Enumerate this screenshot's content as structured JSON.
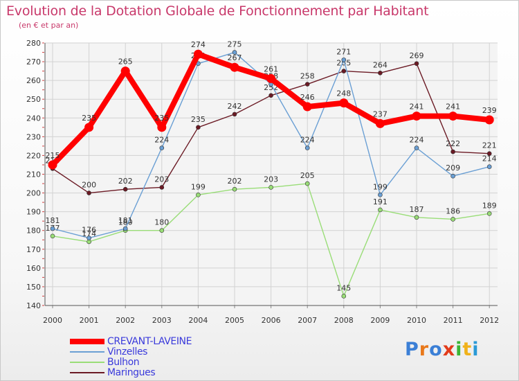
{
  "chart_data": {
    "type": "line",
    "title": "Evolution de la Dotation Globale de Fonctionnement par Habitant",
    "subtitle": "(en € et par an)",
    "categories": [
      "2000",
      "2001",
      "2002",
      "2003",
      "2004",
      "2005",
      "2006",
      "2007",
      "2008",
      "2009",
      "2010",
      "2011",
      "2012"
    ],
    "ylim": [
      140,
      280
    ],
    "yticks": [
      140,
      150,
      160,
      170,
      180,
      190,
      200,
      210,
      220,
      230,
      240,
      250,
      260,
      270,
      280
    ],
    "series": [
      {
        "name": "Maringues",
        "color": "#6b1a24",
        "values": [
          213,
          200,
          202,
          203,
          235,
          242,
          252,
          258,
          265,
          264,
          269,
          222,
          221
        ]
      },
      {
        "name": "Bulhon",
        "color": "#99dd77",
        "values": [
          177,
          174,
          180,
          180,
          199,
          202,
          203,
          205,
          145,
          191,
          187,
          186,
          189
        ]
      },
      {
        "name": "Vinzelles",
        "color": "#6a9fd4",
        "values": [
          181,
          176,
          181,
          224,
          269,
          275,
          258,
          224,
          271,
          199,
          224,
          209,
          214
        ]
      },
      {
        "name": "CREVANT-LAVEINE",
        "color": "#ff0000",
        "values": [
          215,
          235,
          265,
          235,
          274,
          267,
          261,
          246,
          248,
          237,
          241,
          241,
          239
        ]
      }
    ]
  },
  "legend": [
    "CREVANT-LAVEINE",
    "Vinzelles",
    "Bulhon",
    "Maringues"
  ],
  "brand": {
    "text": "Proxiti",
    "colors": [
      "#3b7fd6",
      "#e8781a",
      "#3b7fd6",
      "#e23b1a",
      "#3bb534",
      "#f0b21a",
      "#2b9ad6"
    ]
  }
}
